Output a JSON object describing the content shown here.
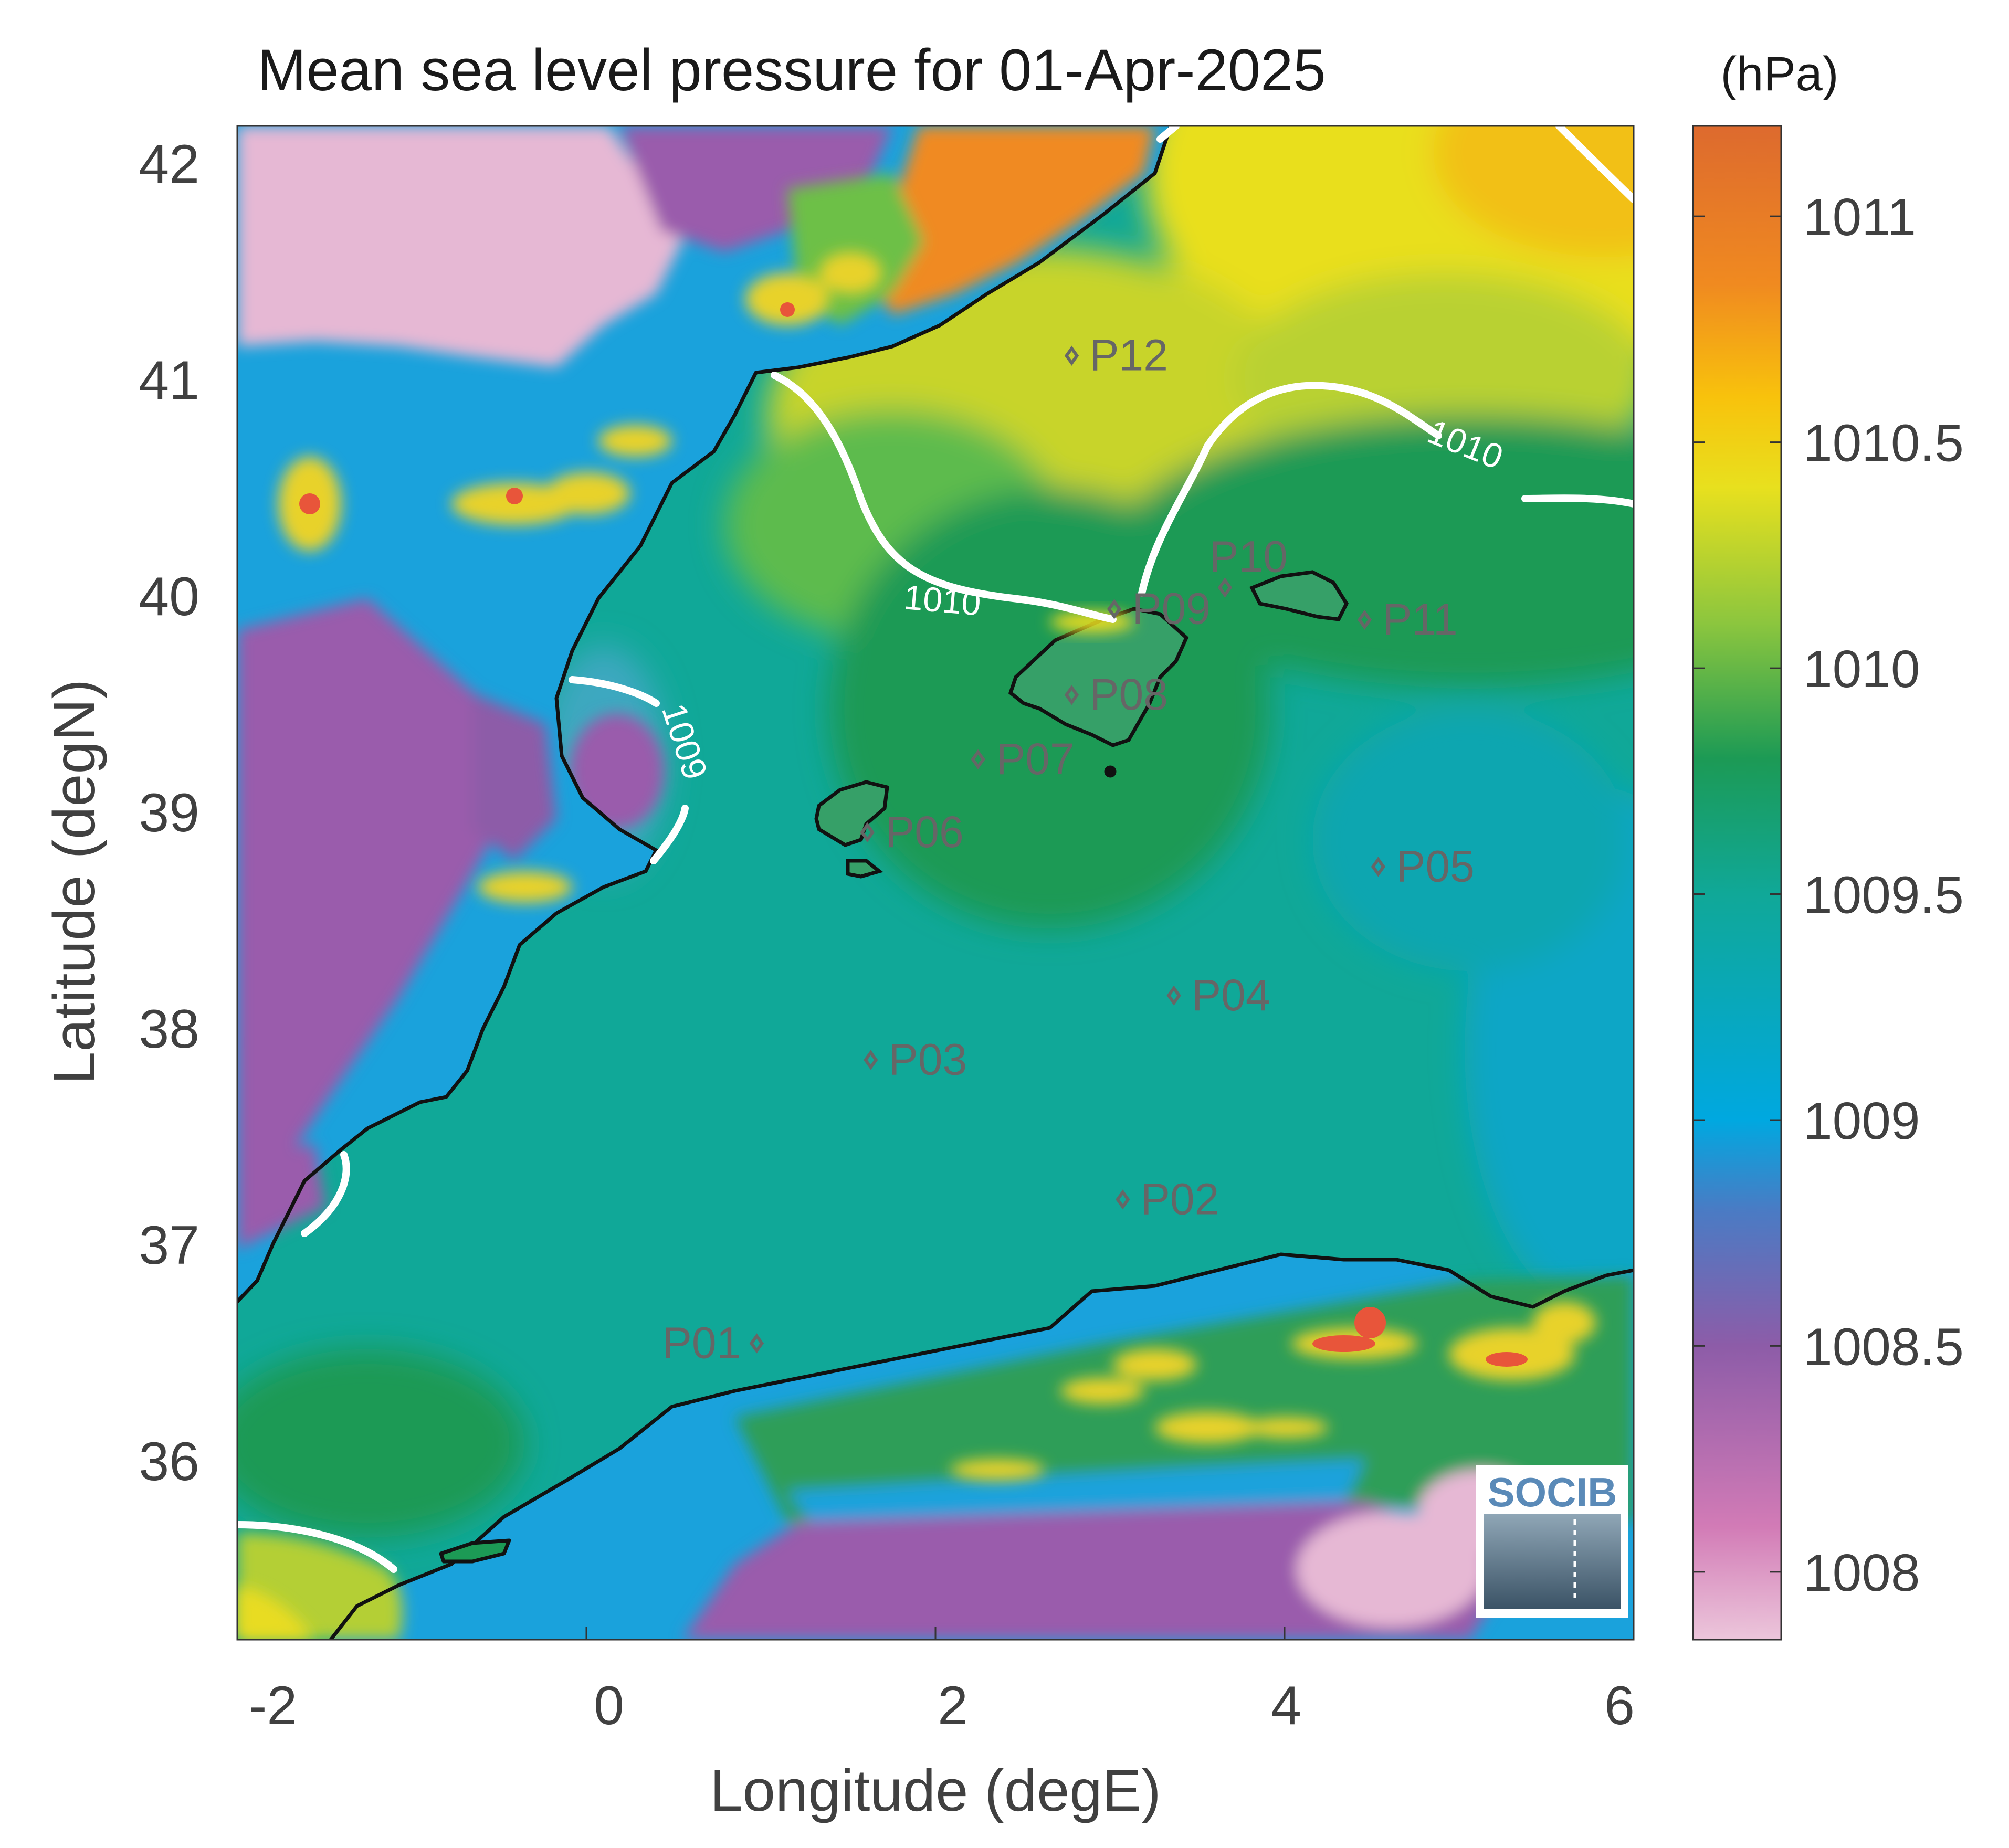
{
  "title": "Mean sea level pressure for 01-Apr-2025",
  "unit_label": "(hPa)",
  "xlabel": "Longitude (degE)",
  "ylabel": "Latitude (degN)",
  "xticks": [
    "-2",
    "0",
    "2",
    "4",
    "6"
  ],
  "yticks": [
    "42",
    "41",
    "40",
    "39",
    "38",
    "37",
    "36"
  ],
  "colorbar": {
    "ticks": [
      "1011",
      "1010.5",
      "1010",
      "1009.5",
      "1009",
      "1008.5",
      "1008"
    ],
    "range": [
      1007.85,
      1011.2
    ],
    "stops": [
      {
        "value": 1007.85,
        "color": "#ecc6db"
      },
      {
        "value": 1008.1,
        "color": "#d27bb6"
      },
      {
        "value": 1008.5,
        "color": "#8d5ca8"
      },
      {
        "value": 1008.8,
        "color": "#4a7bc4"
      },
      {
        "value": 1009.0,
        "color": "#00a8e0"
      },
      {
        "value": 1009.5,
        "color": "#10a898"
      },
      {
        "value": 1009.8,
        "color": "#1c9a55"
      },
      {
        "value": 1010.1,
        "color": "#8cc63e"
      },
      {
        "value": 1010.4,
        "color": "#e8e01e"
      },
      {
        "value": 1010.6,
        "color": "#f8c20c"
      },
      {
        "value": 1010.85,
        "color": "#f08a20"
      },
      {
        "value": 1011.2,
        "color": "#dd6a2e"
      }
    ]
  },
  "contour_labels": [
    "1010",
    "1010",
    "1009"
  ],
  "points": [
    {
      "label": "P01",
      "lon": 0.85,
      "lat": 36.48
    },
    {
      "label": "P02",
      "lon": 3.0,
      "lat": 37.15
    },
    {
      "label": "P03",
      "lon": 1.52,
      "lat": 37.8
    },
    {
      "label": "P04",
      "lon": 3.3,
      "lat": 38.1
    },
    {
      "label": "P05",
      "lon": 4.5,
      "lat": 38.7
    },
    {
      "label": "P06",
      "lon": 1.5,
      "lat": 38.86
    },
    {
      "label": "P07",
      "lon": 2.15,
      "lat": 39.2
    },
    {
      "label": "P08",
      "lon": 2.7,
      "lat": 39.5
    },
    {
      "label": "P09",
      "lon": 2.95,
      "lat": 39.9
    },
    {
      "label": "P10",
      "lon": 3.6,
      "lat": 40.0
    },
    {
      "label": "P11",
      "lon": 4.42,
      "lat": 39.85
    },
    {
      "label": "P12",
      "lon": 2.7,
      "lat": 41.08
    }
  ],
  "logo_text": "SOCIB",
  "colors": {
    "sea_base": "#10a898",
    "land_pink": "#e6b8d4",
    "land_purple": "#9a5bac",
    "land_blue": "#1aa2dc",
    "coast": "#111111",
    "contour": "#ffffff",
    "point_text": "#666666"
  }
}
